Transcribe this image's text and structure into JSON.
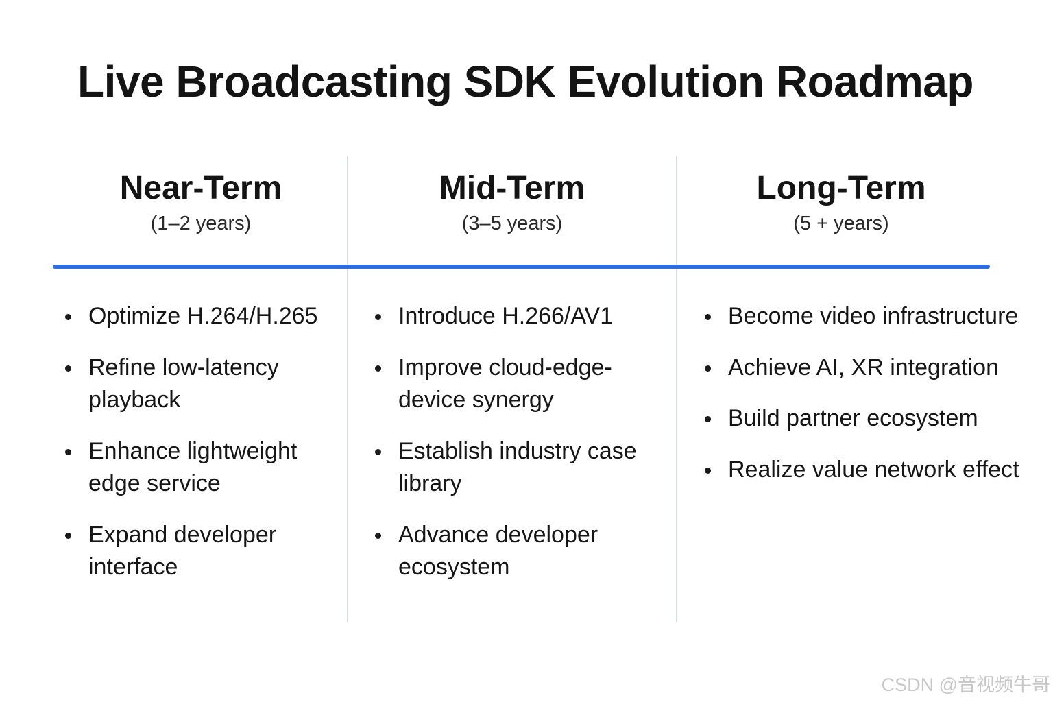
{
  "title": "Live Broadcasting SDK Evolution Roadmap",
  "colors": {
    "timeline": "#2f6fe0",
    "divider": "#d9dde5",
    "text": "#141414"
  },
  "phases": [
    {
      "title": "Near-Term",
      "subtitle": "(1–2 years)",
      "items": [
        "Optimize H.264/H.265",
        "Refine low-latency playback",
        "Enhance lightweight edge service",
        "Expand developer interface"
      ]
    },
    {
      "title": "Mid-Term",
      "subtitle": "(3–5 years)",
      "items": [
        "Introduce H.266/AV1",
        "Improve cloud-edge-device synergy",
        "Establish industry case library",
        "Advance developer ecosystem"
      ]
    },
    {
      "title": "Long-Term",
      "subtitle": "(5 + years)",
      "items": [
        "Become video infrastructure",
        "Achieve AI, XR integration",
        "Build partner ecosystem",
        "Realize value network effect"
      ]
    }
  ],
  "watermark": "CSDN @音视频牛哥"
}
